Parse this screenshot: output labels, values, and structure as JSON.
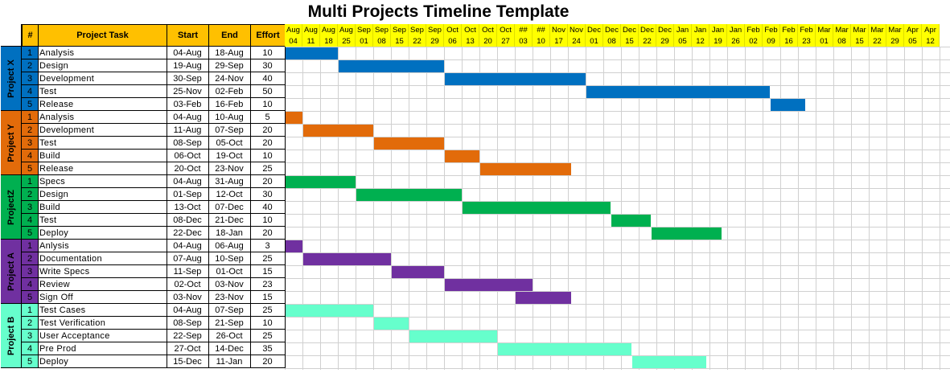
{
  "title": "Multi Projects Timeline Template",
  "headers": {
    "num": "#",
    "task": "Project Task",
    "start": "Start",
    "end": "End",
    "effort": "Effort"
  },
  "timeline": [
    {
      "m": "Aug",
      "d": "04"
    },
    {
      "m": "Aug",
      "d": "11"
    },
    {
      "m": "Aug",
      "d": "18"
    },
    {
      "m": "Aug",
      "d": "25"
    },
    {
      "m": "Sep",
      "d": "01"
    },
    {
      "m": "Sep",
      "d": "08"
    },
    {
      "m": "Sep",
      "d": "15"
    },
    {
      "m": "Sep",
      "d": "22"
    },
    {
      "m": "Sep",
      "d": "29"
    },
    {
      "m": "Oct",
      "d": "06"
    },
    {
      "m": "Oct",
      "d": "13"
    },
    {
      "m": "Oct",
      "d": "20"
    },
    {
      "m": "Oct",
      "d": "27"
    },
    {
      "m": "##",
      "d": "03"
    },
    {
      "m": "##",
      "d": "10"
    },
    {
      "m": "Nov",
      "d": "17"
    },
    {
      "m": "Nov",
      "d": "24"
    },
    {
      "m": "Dec",
      "d": "01"
    },
    {
      "m": "Dec",
      "d": "08"
    },
    {
      "m": "Dec",
      "d": "15"
    },
    {
      "m": "Dec",
      "d": "22"
    },
    {
      "m": "Dec",
      "d": "29"
    },
    {
      "m": "Jan",
      "d": "05"
    },
    {
      "m": "Jan",
      "d": "12"
    },
    {
      "m": "Jan",
      "d": "19"
    },
    {
      "m": "Jan",
      "d": "26"
    },
    {
      "m": "Feb",
      "d": "02"
    },
    {
      "m": "Feb",
      "d": "09"
    },
    {
      "m": "Feb",
      "d": "16"
    },
    {
      "m": "Feb",
      "d": "23"
    },
    {
      "m": "Mar",
      "d": "01"
    },
    {
      "m": "Mar",
      "d": "08"
    },
    {
      "m": "Mar",
      "d": "15"
    },
    {
      "m": "Mar",
      "d": "22"
    },
    {
      "m": "Mar",
      "d": "29"
    },
    {
      "m": "Apr",
      "d": "05"
    },
    {
      "m": "Apr",
      "d": "12"
    }
  ],
  "projects": [
    {
      "name": "Project X",
      "color": "#0070c0",
      "tasks": [
        {
          "n": "1",
          "task": "Analysis",
          "start": "04-Aug",
          "end": "18-Aug",
          "effort": "10",
          "s": 0,
          "e": 3
        },
        {
          "n": "2",
          "task": "Design",
          "start": "19-Aug",
          "end": "29-Sep",
          "effort": "30",
          "s": 3,
          "e": 9
        },
        {
          "n": "3",
          "task": "Development",
          "start": "30-Sep",
          "end": "24-Nov",
          "effort": "40",
          "s": 9,
          "e": 17
        },
        {
          "n": "4",
          "task": "Test",
          "start": "25-Nov",
          "end": "02-Feb",
          "effort": "50",
          "s": 17,
          "e": 27.4
        },
        {
          "n": "5",
          "task": "Release",
          "start": "03-Feb",
          "end": "16-Feb",
          "effort": "10",
          "s": 27.4,
          "e": 29.4
        }
      ]
    },
    {
      "name": "Project Y",
      "color": "#e26b0a",
      "tasks": [
        {
          "n": "1",
          "task": "Analysis",
          "start": "04-Aug",
          "end": "10-Aug",
          "effort": "5",
          "s": 0,
          "e": 1
        },
        {
          "n": "2",
          "task": "Development",
          "start": "11-Aug",
          "end": "07-Sep",
          "effort": "20",
          "s": 1,
          "e": 5
        },
        {
          "n": "3",
          "task": "Test",
          "start": "08-Sep",
          "end": "05-Oct",
          "effort": "20",
          "s": 5,
          "e": 9
        },
        {
          "n": "4",
          "task": "Build",
          "start": "06-Oct",
          "end": "19-Oct",
          "effort": "10",
          "s": 9,
          "e": 11
        },
        {
          "n": "5",
          "task": "Release",
          "start": "20-Oct",
          "end": "23-Nov",
          "effort": "25",
          "s": 11,
          "e": 16.2
        }
      ]
    },
    {
      "name": "ProjectZ",
      "color": "#00b050",
      "tasks": [
        {
          "n": "1",
          "task": "Specs",
          "start": "04-Aug",
          "end": "31-Aug",
          "effort": "20",
          "s": 0,
          "e": 4
        },
        {
          "n": "2",
          "task": "Design",
          "start": "01-Sep",
          "end": "12-Oct",
          "effort": "30",
          "s": 4,
          "e": 10
        },
        {
          "n": "3",
          "task": "Build",
          "start": "13-Oct",
          "end": "07-Dec",
          "effort": "40",
          "s": 10,
          "e": 18.4
        },
        {
          "n": "4",
          "task": "Test",
          "start": "08-Dec",
          "end": "21-Dec",
          "effort": "10",
          "s": 18.4,
          "e": 20.7
        },
        {
          "n": "5",
          "task": "Deploy",
          "start": "22-Dec",
          "end": "18-Jan",
          "effort": "20",
          "s": 20.7,
          "e": 24.7
        }
      ]
    },
    {
      "name": "Project A",
      "color": "#7030a0",
      "tasks": [
        {
          "n": "1",
          "task": "Anlysis",
          "start": "04-Aug",
          "end": "06-Aug",
          "effort": "3",
          "s": 0,
          "e": 1
        },
        {
          "n": "2",
          "task": "Documentation",
          "start": "07-Aug",
          "end": "10-Sep",
          "effort": "25",
          "s": 1,
          "e": 6
        },
        {
          "n": "3",
          "task": "Write Specs",
          "start": "11-Sep",
          "end": "01-Oct",
          "effort": "15",
          "s": 6,
          "e": 9
        },
        {
          "n": "4",
          "task": "Review",
          "start": "02-Oct",
          "end": "03-Nov",
          "effort": "23",
          "s": 9,
          "e": 14
        },
        {
          "n": "5",
          "task": "Sign Off",
          "start": "03-Nov",
          "end": "23-Nov",
          "effort": "15",
          "s": 13,
          "e": 16.2
        }
      ]
    },
    {
      "name": "Project B",
      "color": "#66ffcc",
      "tasks": [
        {
          "n": "1",
          "task": "Test Cases",
          "start": "04-Aug",
          "end": "07-Sep",
          "effort": "25",
          "s": 0,
          "e": 5
        },
        {
          "n": "2",
          "task": "Test Verification",
          "start": "08-Sep",
          "end": "21-Sep",
          "effort": "10",
          "s": 5,
          "e": 7
        },
        {
          "n": "3",
          "task": "User Acceptance",
          "start": "22-Sep",
          "end": "26-Oct",
          "effort": "25",
          "s": 7,
          "e": 12
        },
        {
          "n": "4",
          "task": "Pre Prod",
          "start": "27-Oct",
          "end": "14-Dec",
          "effort": "35",
          "s": 12,
          "e": 19.6
        },
        {
          "n": "5",
          "task": "Deploy",
          "start": "15-Dec",
          "end": "11-Jan",
          "effort": "20",
          "s": 19.6,
          "e": 23.8
        }
      ]
    }
  ]
}
